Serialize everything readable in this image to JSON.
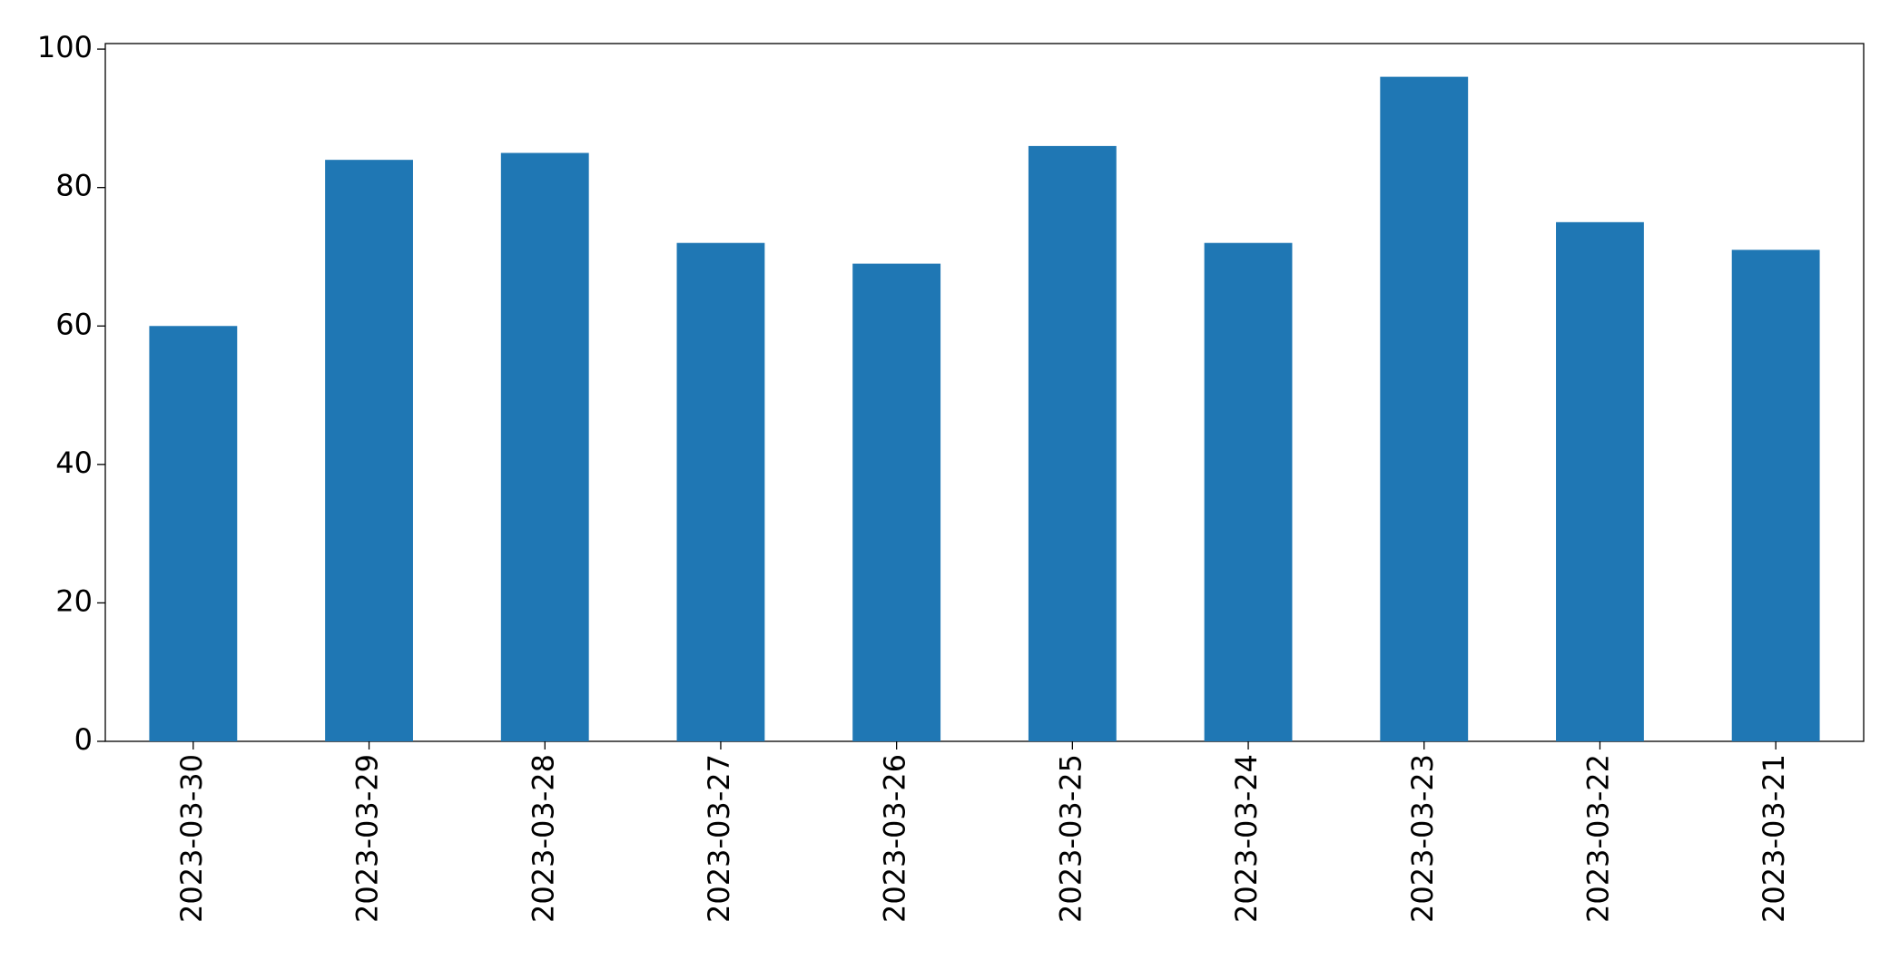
{
  "chart_data": {
    "type": "bar",
    "categories": [
      "2023-03-30",
      "2023-03-29",
      "2023-03-28",
      "2023-03-27",
      "2023-03-26",
      "2023-03-25",
      "2023-03-24",
      "2023-03-23",
      "2023-03-22",
      "2023-03-21"
    ],
    "values": [
      60,
      84,
      85,
      72,
      69,
      86,
      72,
      96,
      75,
      71
    ],
    "color": "#1f77b4",
    "ylim": [
      0,
      100.8
    ],
    "yticks": [
      0,
      20,
      40,
      60,
      80,
      100
    ],
    "grid": false
  }
}
